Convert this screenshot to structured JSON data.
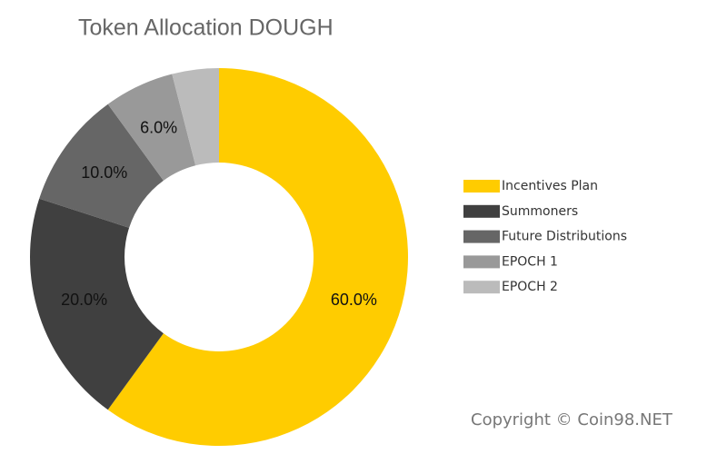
{
  "chart_data": {
    "type": "donut",
    "title": "Token Allocation DOUGH",
    "categories": [
      "Incentives Plan",
      "Summoners",
      "Future Distributions",
      "EPOCH 1",
      "EPOCH 2"
    ],
    "values": [
      60,
      20,
      10,
      6,
      4
    ],
    "value_labels": [
      "60.0%",
      "20.0%",
      "10.0%",
      "6.0%",
      null
    ],
    "colors": [
      "#ffcc00",
      "#404040",
      "#666666",
      "#999999",
      "#bbbbbb"
    ],
    "legend": "right"
  },
  "watermark": "Copyright © Coin98.NET"
}
